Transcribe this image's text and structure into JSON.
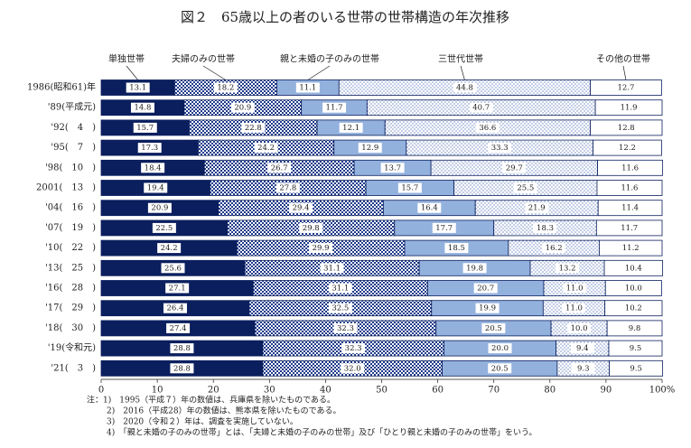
{
  "chart_data": {
    "type": "stacked-bar-horizontal",
    "title": "図２　65歳以上の者のいる世帯の世帯構造の年次推移",
    "categories": [
      "1986(昭和61)年",
      "'89(平成元)",
      "'92(　4　)",
      "'95(　7　)",
      "'98(　10　)",
      "2001(　13　)",
      "'04(　16　)",
      "'07(　19　)",
      "'10(　22　)",
      "'13(　25　)",
      "'16(　28　)",
      "'17(　29　)",
      "'18(　30　)",
      "'19(令和元)",
      "'21(　3　)"
    ],
    "series": [
      {
        "name": "単独世帯",
        "color": "#0b1f5e",
        "pattern": "solid",
        "values": [
          13.1,
          14.8,
          15.7,
          17.3,
          18.4,
          19.4,
          20.9,
          22.5,
          24.2,
          25.6,
          27.1,
          26.4,
          27.4,
          28.8,
          28.8
        ],
        "value_labels": [
          "13.1",
          "14.8",
          "15.7",
          "17.3",
          "18.4",
          "19.4",
          "20.9",
          "22.5",
          "24.2",
          "25.6",
          "27.1",
          "26.4",
          "27.4",
          "28.8",
          "28.8"
        ]
      },
      {
        "name": "夫婦のみの世帯",
        "color": "#1d3a8a",
        "pattern": "checker",
        "values": [
          18.2,
          20.9,
          22.8,
          24.2,
          26.7,
          27.8,
          29.4,
          29.8,
          29.9,
          31.1,
          31.1,
          32.5,
          32.3,
          32.3,
          32.0
        ],
        "value_labels": [
          "18.2",
          "20.9",
          "22.8",
          "24.2",
          "26.7",
          "27.8",
          "29.4",
          "29.8",
          "29.9",
          "31.1",
          "31.1",
          "32.5",
          "32.3",
          "32.3",
          "32.0"
        ]
      },
      {
        "name": "親と未婚の子のみの世帯",
        "color": "#93b1dd",
        "pattern": "solid",
        "values": [
          11.1,
          11.7,
          12.1,
          12.9,
          13.7,
          15.7,
          16.4,
          17.7,
          18.5,
          19.8,
          20.7,
          19.9,
          20.5,
          20.0,
          20.5
        ],
        "value_labels": [
          "11.1",
          "11.7",
          "12.1",
          "12.9",
          "13.7",
          "15.7",
          "16.4",
          "17.7",
          "18.5",
          "19.8",
          "20.7",
          "19.9",
          "20.5",
          "20.0",
          "20.5"
        ]
      },
      {
        "name": "三世代世帯",
        "color": "#2d56a8",
        "pattern": "dots",
        "values": [
          44.8,
          40.7,
          36.6,
          33.3,
          29.7,
          25.5,
          21.9,
          18.3,
          16.2,
          13.2,
          11.0,
          11.0,
          10.0,
          9.4,
          9.3
        ],
        "value_labels": [
          "44.8",
          "40.7",
          "36.6",
          "33.3",
          "29.7",
          "25.5",
          "21.9",
          "18.3",
          "16.2",
          "13.2",
          "11.0",
          "11.0",
          "10.0",
          "9.4",
          "9.3"
        ]
      },
      {
        "name": "その他の世帯",
        "color": "#ffffff",
        "pattern": "solid",
        "values": [
          12.7,
          11.9,
          12.8,
          12.2,
          11.6,
          11.6,
          11.4,
          11.7,
          11.2,
          10.4,
          10.0,
          10.2,
          9.8,
          9.5,
          9.5
        ],
        "value_labels": [
          "12.7",
          "11.9",
          "12.8",
          "12.2",
          "11.6",
          "11.6",
          "11.4",
          "11.7",
          "11.2",
          "10.4",
          "10.0",
          "10.2",
          "9.8",
          "9.5",
          "9.5"
        ]
      }
    ],
    "xlim": [
      0,
      100
    ],
    "xticks": [
      0,
      10,
      20,
      30,
      40,
      50,
      60,
      70,
      80,
      90,
      {
        "value": 100,
        "label": "100%"
      }
    ],
    "notes": [
      "注：1)　1995（平成７）年の数値は、兵庫県を除いたものである。",
      "2)　2016（平成28）年の数値は、熊本県を除いたものである。",
      "3)　2020（令和２）年は、調査を実施していない。",
      "4)　「親と未婚の子のみの世帯」とは、「夫婦と未婚の子のみの世帯」及び「ひとり親と未婚の子のみの世帯」をいう。"
    ]
  }
}
